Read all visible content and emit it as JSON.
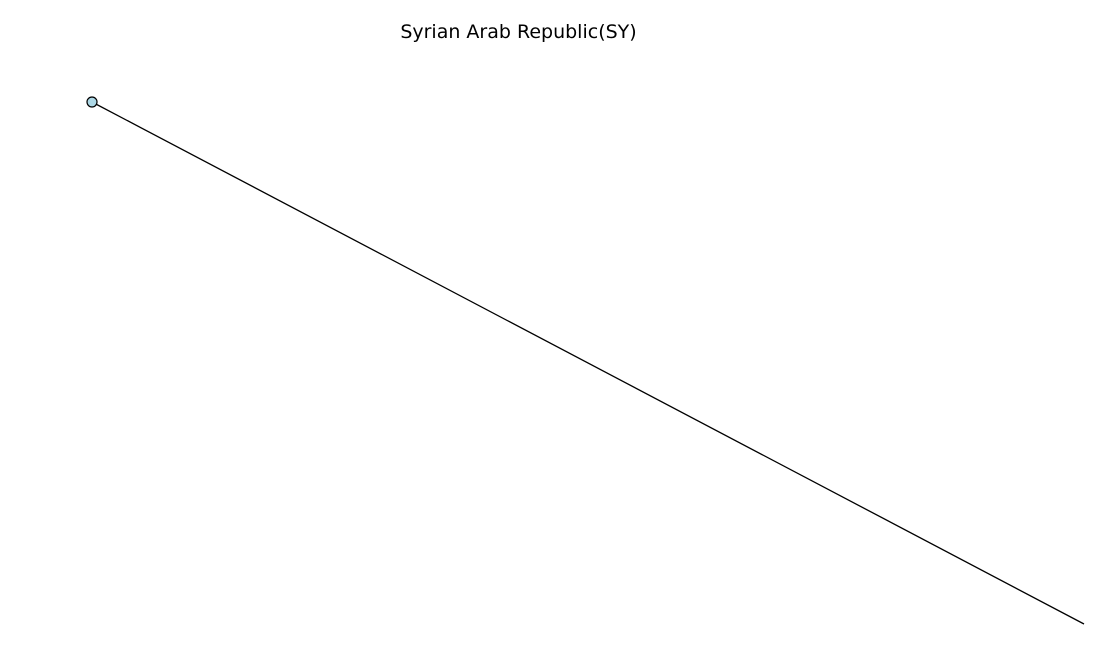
{
  "figure": {
    "title": "Syrian Arab Republic(SY)"
  },
  "graph": {
    "nodes": [
      {
        "id": "node-1",
        "fill": "#add8e6",
        "stroke": "#000000"
      }
    ],
    "edges": [
      {
        "from": "node-1",
        "to": "offscreen",
        "color": "#000000"
      }
    ]
  }
}
